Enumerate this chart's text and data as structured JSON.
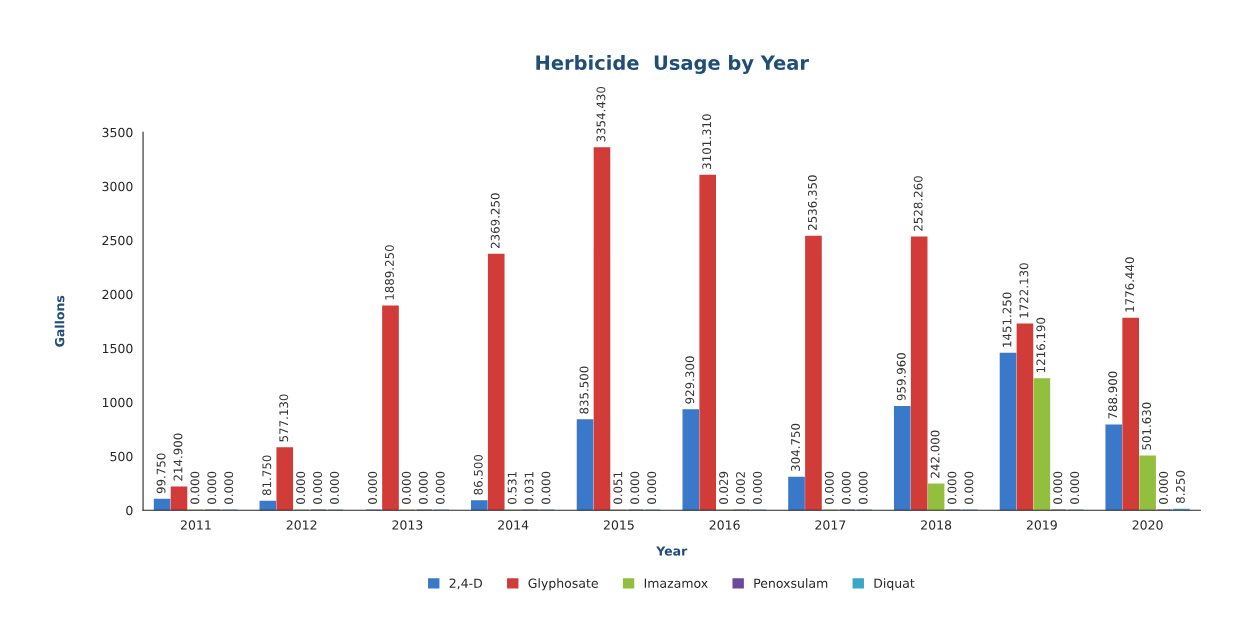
{
  "chart_data": {
    "type": "bar",
    "title": "Herbicide  Usage by Year",
    "xlabel": "Year",
    "ylabel": "Gallons",
    "categories": [
      "2011",
      "2012",
      "2013",
      "2014",
      "2015",
      "2016",
      "2017",
      "2018",
      "2019",
      "2020"
    ],
    "series": [
      {
        "name": "2,4-D",
        "color": "#3a78c9",
        "values": [
          99.75,
          81.75,
          0,
          86.5,
          835.5,
          929.3,
          304.75,
          959.96,
          1451.25,
          788.9
        ],
        "value_labels": [
          "99.750",
          "81.750",
          "0.000",
          "86.500",
          "835.500",
          "929.300",
          "304.750",
          "959.960",
          "1451.250",
          "788.900"
        ]
      },
      {
        "name": "Glyphosate",
        "color": "#d13b38",
        "values": [
          214.9,
          577.13,
          1889.25,
          2369.25,
          3354.43,
          3101.31,
          2536.35,
          2528.26,
          1722.13,
          1776.44
        ],
        "value_labels": [
          "214.900",
          "577.130",
          "1889.250",
          "2369.250",
          "3354.430",
          "3101.310",
          "2536.350",
          "2528.260",
          "1722.130",
          "1776.440"
        ]
      },
      {
        "name": "Imazamox",
        "color": "#93bf3e",
        "values": [
          0,
          0,
          0,
          0.531,
          0.051,
          0.029,
          0,
          242,
          1216.19,
          501.63
        ],
        "value_labels": [
          "0.000",
          "0.000",
          "0.000",
          "0.531",
          "0.051",
          "0.029",
          "0.000",
          "242.000",
          "1216.190",
          "501.630"
        ]
      },
      {
        "name": "Penoxsulam",
        "color": "#6a4a9c",
        "values": [
          0,
          0,
          0,
          0.031,
          0,
          0.002,
          0,
          0,
          0,
          0
        ],
        "value_labels": [
          "0.000",
          "0.000",
          "0.000",
          "0.031",
          "0.000",
          "0.002",
          "0.000",
          "0.000",
          "0.000",
          "0.000"
        ]
      },
      {
        "name": "Diquat",
        "color": "#3aa7c7",
        "values": [
          0,
          0,
          0,
          0,
          0,
          0,
          0,
          0,
          0,
          8.25
        ],
        "value_labels": [
          "0.000",
          "0.000",
          "0.000",
          "0.000",
          "0.000",
          "0.000",
          "0.000",
          "0.000",
          "0.000",
          "8.250"
        ]
      }
    ],
    "ylim": [
      0,
      3500
    ],
    "yticks": [
      0,
      500,
      1000,
      1500,
      2000,
      2500,
      3000,
      3500
    ],
    "legend": "bottom"
  }
}
